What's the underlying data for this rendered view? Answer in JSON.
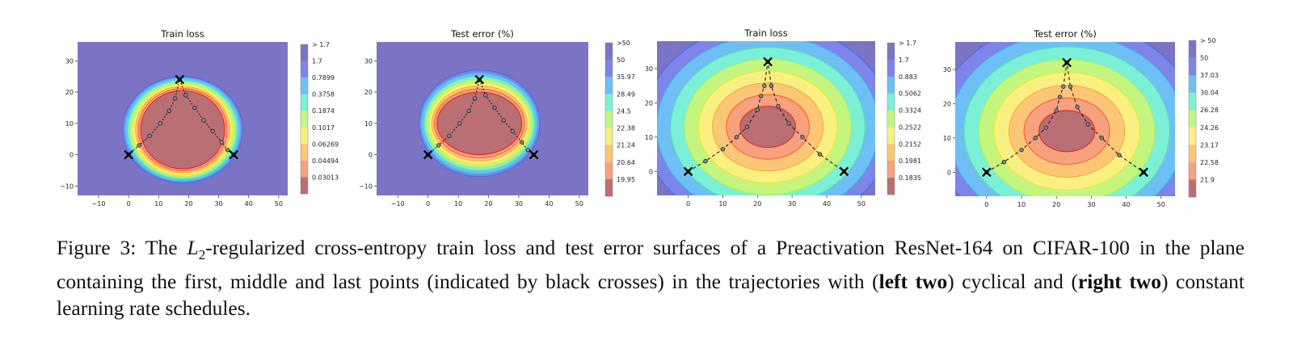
{
  "chart_data": [
    {
      "type": "contour",
      "title": "Train loss",
      "x": {
        "min": -17,
        "max": 53,
        "ticks": [
          -10,
          0,
          10,
          20,
          30,
          40,
          50
        ]
      },
      "y": {
        "min": -13,
        "max": 36,
        "ticks": [
          -10,
          0,
          10,
          20,
          30
        ]
      },
      "colorbar": {
        "labels": [
          "> 1.7",
          "1.7",
          "0.7899",
          "0.3758",
          "0.1874",
          "0.1017",
          "0.06269",
          "0.04494",
          "0.03013"
        ]
      },
      "surface": {
        "center": [
          18,
          8
        ],
        "rx": [
          14,
          20
        ],
        "ry": [
          12.5,
          17
        ]
      },
      "crosses": [
        [
          0,
          0
        ],
        [
          17,
          24
        ],
        [
          35,
          0
        ]
      ],
      "trajectory": [
        [
          0,
          0
        ],
        [
          3.5,
          3
        ],
        [
          7,
          6
        ],
        [
          10.5,
          10
        ],
        [
          13.5,
          14
        ],
        [
          15.5,
          18
        ],
        [
          17,
          24
        ],
        [
          19,
          19
        ],
        [
          22,
          15
        ],
        [
          25,
          11
        ],
        [
          28,
          7.5
        ],
        [
          31,
          4
        ],
        [
          33,
          1.5
        ],
        [
          35,
          0
        ]
      ],
      "dash_style": "dotted-dense"
    },
    {
      "type": "contour",
      "title": "Test error (%)",
      "x": {
        "min": -17,
        "max": 53,
        "ticks": [
          -10,
          0,
          10,
          20,
          30,
          40,
          50
        ]
      },
      "y": {
        "min": -13,
        "max": 36,
        "ticks": [
          -10,
          0,
          10,
          20,
          30
        ]
      },
      "colorbar": {
        "labels": [
          ">50",
          "50",
          "35.97",
          "28.49",
          "24.5",
          "22.38",
          "21.24",
          "20.64",
          "19.95"
        ]
      },
      "surface": {
        "center": [
          17,
          10
        ],
        "rx": [
          14,
          20
        ],
        "ry": [
          10,
          17
        ]
      },
      "crosses": [
        [
          0,
          0
        ],
        [
          17,
          24
        ],
        [
          35,
          0
        ]
      ],
      "trajectory": [
        [
          0,
          0
        ],
        [
          3.5,
          3
        ],
        [
          7,
          6
        ],
        [
          10.5,
          10
        ],
        [
          13.5,
          14
        ],
        [
          15.5,
          18
        ],
        [
          17,
          24
        ],
        [
          19,
          19
        ],
        [
          22,
          15
        ],
        [
          25,
          11
        ],
        [
          28,
          7.5
        ],
        [
          31,
          4
        ],
        [
          33,
          1.5
        ],
        [
          35,
          0
        ]
      ],
      "dash_style": "dotted-dense"
    },
    {
      "type": "contour",
      "title": "Train loss",
      "x": {
        "min": -9,
        "max": 54,
        "ticks": [
          0,
          10,
          20,
          30,
          40,
          50
        ]
      },
      "y": {
        "min": -7,
        "max": 38,
        "ticks": [
          0,
          10,
          20,
          30
        ]
      },
      "colorbar": {
        "labels": [
          "> 1.7",
          "1.7",
          "0.883",
          "0.5062",
          "0.3324",
          "0.2522",
          "0.2152",
          "0.1981",
          "0.1835"
        ]
      },
      "surface": {
        "center": [
          23,
          13
        ],
        "rx": [
          8,
          36
        ],
        "ry": [
          6,
          30
        ]
      },
      "crosses": [
        [
          0,
          0
        ],
        [
          23,
          32
        ],
        [
          45,
          0
        ]
      ],
      "trajectory": [
        [
          0,
          0
        ],
        [
          5,
          3
        ],
        [
          10,
          6.5
        ],
        [
          14,
          10
        ],
        [
          17,
          13
        ],
        [
          20,
          18
        ],
        [
          21,
          22
        ],
        [
          22,
          25
        ],
        [
          23,
          32
        ],
        [
          24,
          25
        ],
        [
          26,
          19
        ],
        [
          29,
          14
        ],
        [
          33,
          10
        ],
        [
          38,
          5
        ],
        [
          45,
          0
        ]
      ],
      "dash_style": "dashed-sparse"
    },
    {
      "type": "contour",
      "title": "Test error (%)",
      "x": {
        "min": -9,
        "max": 54,
        "ticks": [
          0,
          10,
          20,
          30,
          40,
          50
        ]
      },
      "y": {
        "min": -7,
        "max": 38,
        "ticks": [
          0,
          10,
          20,
          30
        ]
      },
      "colorbar": {
        "labels": [
          "> 50",
          "50",
          "37.03",
          "30.04",
          "26.28",
          "24.26",
          "23.17",
          "22.58",
          "21.9"
        ]
      },
      "surface": {
        "center": [
          23,
          12
        ],
        "rx": [
          8,
          38
        ],
        "ry": [
          6,
          32
        ]
      },
      "crosses": [
        [
          0,
          0
        ],
        [
          23,
          32
        ],
        [
          45,
          0
        ]
      ],
      "trajectory": [
        [
          0,
          0
        ],
        [
          5,
          3
        ],
        [
          10,
          6.5
        ],
        [
          14,
          10
        ],
        [
          17,
          13
        ],
        [
          20,
          18
        ],
        [
          21,
          22
        ],
        [
          22,
          25
        ],
        [
          23,
          32
        ],
        [
          24,
          25
        ],
        [
          26,
          19
        ],
        [
          29,
          14
        ],
        [
          33,
          10
        ],
        [
          38,
          5
        ],
        [
          45,
          0
        ]
      ],
      "dash_style": "dashed-sparse"
    }
  ],
  "palette": [
    "#7b74c4",
    "#7d85ea",
    "#6fbff4",
    "#7bf0d6",
    "#c4f57f",
    "#faf082",
    "#fbc777",
    "#f7a17f",
    "#b96f73"
  ],
  "contour_line_colors": [
    "#2b3aa8",
    "#3f6ee8",
    "#2fd0e6",
    "#58e8a8",
    "#c9ef3a",
    "#f3ea2a",
    "#f7a62e",
    "#f5572b",
    "#e01f1f"
  ],
  "caption": {
    "p1": "Figure 3: The ",
    "math_L": "L",
    "math_sub": "2",
    "p2": "-regularized cross-entropy train loss and test error surfaces of a Preactivation ResNet-164 on CIFAR-100 in the plane containing the first, middle and last points (indicated by black crosses) in the trajectories with (",
    "b1": "left two",
    "p3": ") cyclical and (",
    "b2": "right two",
    "p4": ") constant learning rate schedules."
  }
}
